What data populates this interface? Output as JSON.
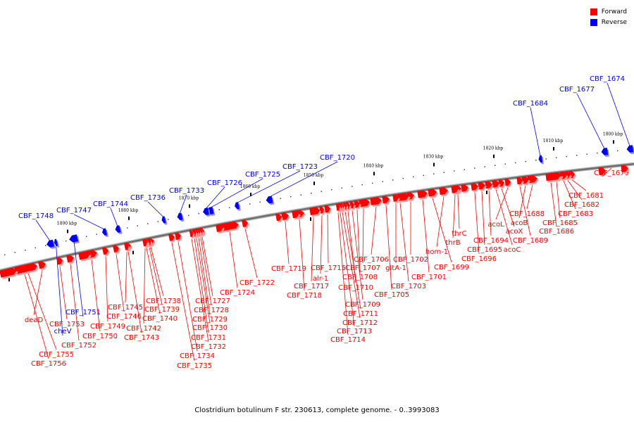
{
  "legend": {
    "forward_label": "Forward",
    "reverse_label": "Reverse",
    "forward_color": "#ff0000",
    "reverse_color": "#0000ff"
  },
  "caption": "Clostridium botulinum F str. 230613, complete genome. - 0..3993083",
  "ticks": [
    "1800 kbp",
    "1810 kbp",
    "1820 kbp",
    "1830 kbp",
    "1840 kbp",
    "1850 kbp",
    "1860 kbp",
    "1870 kbp",
    "1880 kbp",
    "1890 kbp"
  ],
  "reverse_genes": [
    "CBF_1674",
    "CBF_1677",
    "CBF_1684",
    "CBF_1720",
    "CBF_1723",
    "CBF_1725",
    "CBF_1726",
    "CBF_1733",
    "CBF_1736",
    "CBF_1744",
    "CBF_1747",
    "CBF_1748",
    "CBF_1751",
    "cheV"
  ],
  "forward_genes": [
    "CBF_1679",
    "CBF_1681",
    "CBF_1682",
    "CBF_1683",
    "CBF_1685",
    "CBF_1686",
    "CBF_1688",
    "acoB",
    "CBF_1689",
    "acoL",
    "acoX",
    "acoC",
    "CBF_1694",
    "CBF_1695",
    "CBF_1696",
    "thrC",
    "thrB",
    "hom-1",
    "CBF_1699",
    "CBF_1701",
    "CBF_1702",
    "CBF_1703",
    "gltA-1",
    "CBF_1705",
    "CBF_1706",
    "CBF_1707",
    "CBF_1708",
    "CBF_1709",
    "CBF_1710",
    "CBF_1711",
    "CBF_1712",
    "CBF_1713",
    "CBF_1714",
    "CBF_1715",
    "alr-1",
    "CBF_1717",
    "CBF_1718",
    "CBF_1719",
    "CBF_1722",
    "CBF_1724",
    "CBF_1727",
    "CBF_1728",
    "CBF_1729",
    "CBF_1730",
    "CBF_1731",
    "CBF_1732",
    "CBF_1734",
    "CBF_1735",
    "CBF_1738",
    "CBF_1739",
    "CBF_1740",
    "CBF_1742",
    "CBF_1743",
    "CBF_1745",
    "CBF_1746",
    "CBF_1749",
    "CBF_1750",
    "CBF_1752",
    "CBF_1753",
    "deaD",
    "CBF_1755",
    "CBF_1756"
  ]
}
